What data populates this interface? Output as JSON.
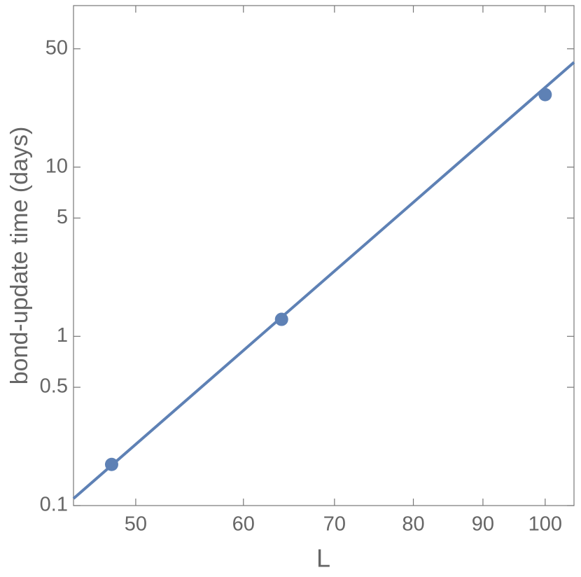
{
  "chart_data": {
    "type": "scatter",
    "x_label": "L",
    "y_label": "bond-update time (days)",
    "x_scale": "log",
    "y_scale": "log",
    "xlim": [
      45,
      105
    ],
    "ylim": [
      0.1,
      90
    ],
    "xticks": [
      50,
      60,
      70,
      80,
      90,
      100
    ],
    "yticks": [
      0.1,
      0.5,
      1,
      5,
      10,
      50
    ],
    "frame": true,
    "series": [
      {
        "type": "scatter",
        "color": "#5e81b5",
        "x": [
          48,
          64,
          100
        ],
        "values": [
          0.175,
          1.26,
          26.8
        ]
      },
      {
        "type": "line",
        "color": "#5e81b5",
        "x": [
          45,
          105
        ],
        "values": [
          0.11,
          41.6
        ]
      }
    ]
  }
}
